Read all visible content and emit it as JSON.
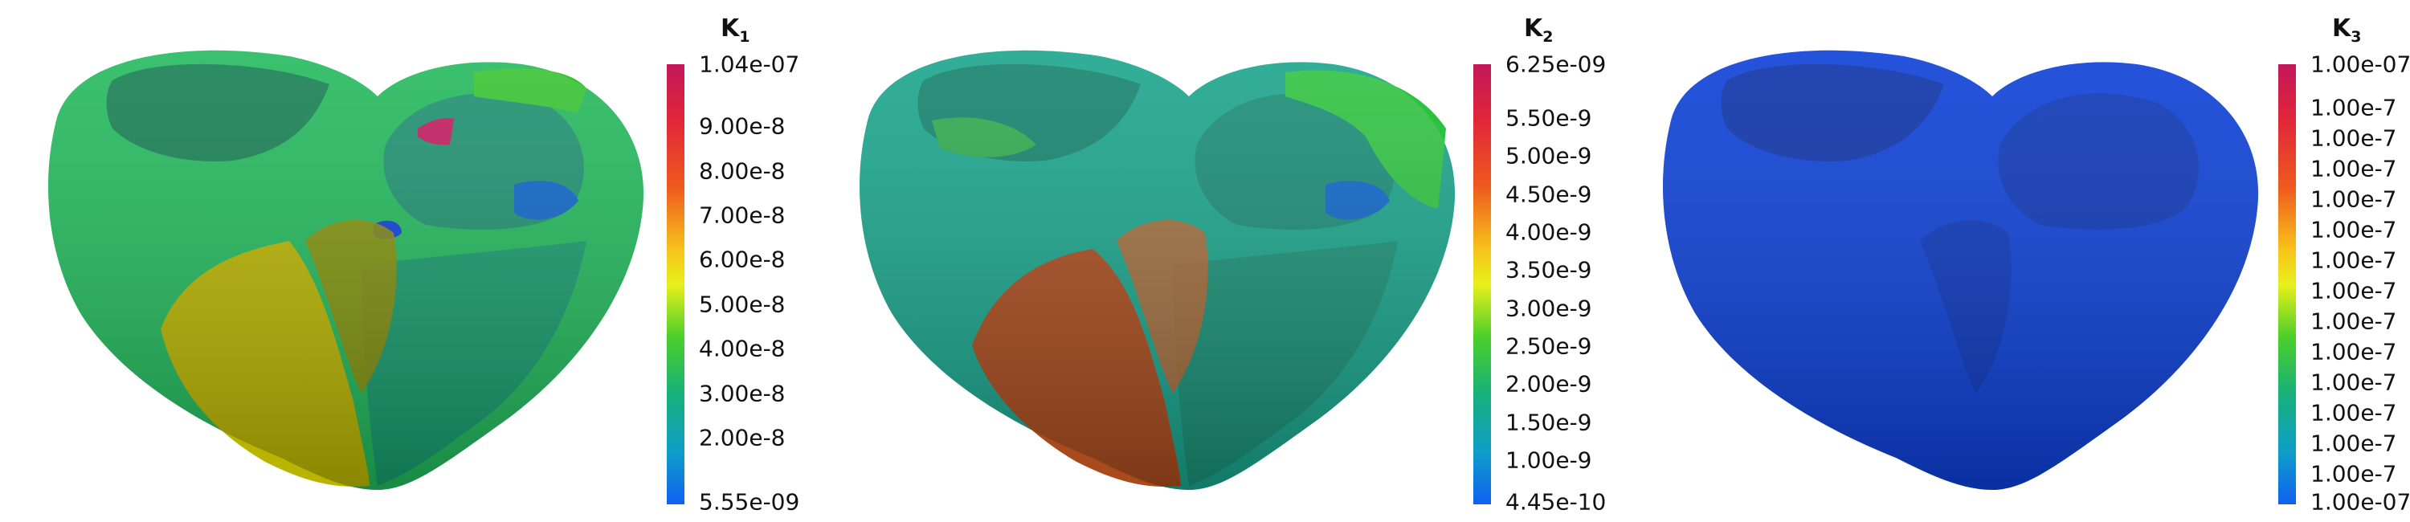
{
  "panels": [
    {
      "title_main": "K",
      "title_sub": "1",
      "colormap": "rainbow",
      "range_max": "1.04e-07",
      "range_min": "5.55e-09",
      "ticks": [
        "9.00e-8",
        "8.00e-8",
        "7.00e-8",
        "6.00e-8",
        "5.00e-8",
        "4.00e-8",
        "3.00e-8",
        "2.00e-8"
      ]
    },
    {
      "title_main": "K",
      "title_sub": "2",
      "colormap": "rainbow",
      "range_max": "6.25e-09",
      "range_min": "4.45e-10",
      "ticks": [
        "5.50e-9",
        "5.00e-9",
        "4.50e-9",
        "4.00e-9",
        "3.50e-9",
        "3.00e-9",
        "2.50e-9",
        "2.00e-9",
        "1.50e-9",
        "1.00e-9"
      ]
    },
    {
      "title_main": "K",
      "title_sub": "3",
      "colormap": "rainbow",
      "range_max": "1.00e-07",
      "range_min": "1.00e-07",
      "ticks": [
        "1.00e-7",
        "1.00e-7",
        "1.00e-7",
        "1.00e-7",
        "1.00e-7",
        "1.00e-7",
        "1.00e-7",
        "1.00e-7",
        "1.00e-7",
        "1.00e-7",
        "1.00e-7",
        "1.00e-7",
        "1.00e-7"
      ]
    }
  ],
  "colors": {
    "green": "#1fb85a",
    "teal": "#16a38a",
    "yellow": "#b8b400",
    "orange": "#a84a1c",
    "blue": "#0b3fd6",
    "magenta": "#c2185b"
  }
}
